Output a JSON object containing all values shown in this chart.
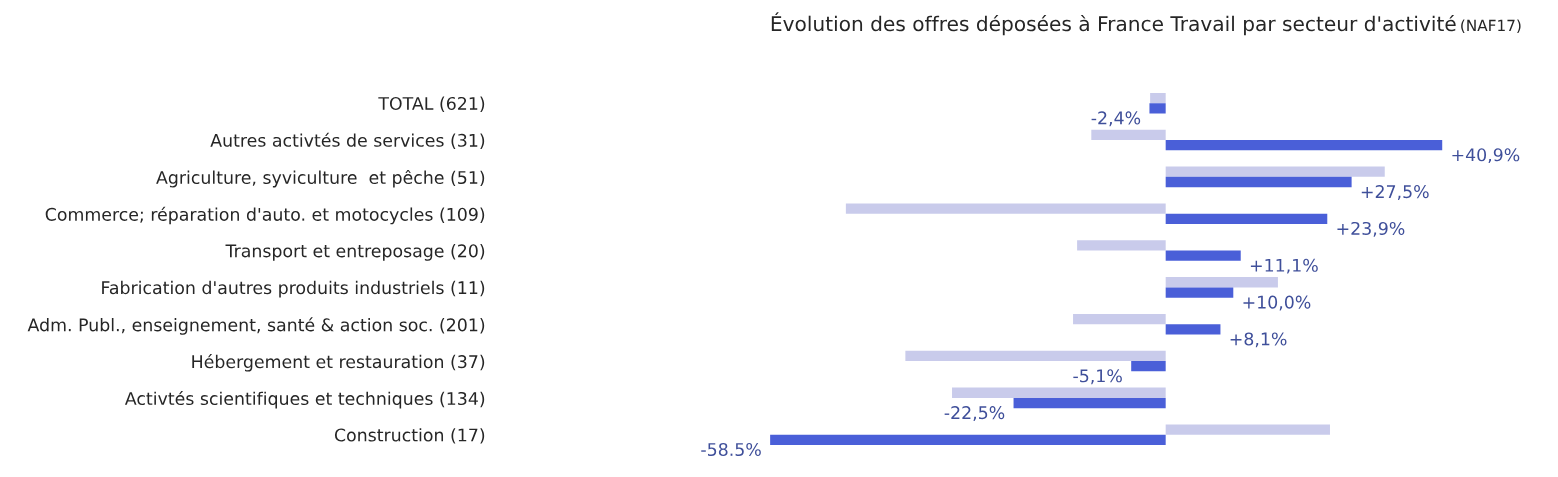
{
  "chart_data": {
    "type": "bar",
    "orientation": "horizontal",
    "title": "Évolution des offres déposées à France Travail par secteur d'activité",
    "subtitle": "(NAF17)",
    "categories": [
      "TOTAL (621)",
      "Autres activtés de services (31)",
      "Agriculture, syviculture  et pêche (51)",
      "Commerce; réparation d'auto. et motocycles (109)",
      "Transport et entreposage (20)",
      "Fabrication d'autres produits industriels (11)",
      "Adm. Publ., enseignement, santé & action soc. (201)",
      "Hébergement et restauration (37)",
      "Activtés scientifiques et techniques (134)",
      "Construction (17)"
    ],
    "series": [
      {
        "color": "#c9cbeb",
        "values": [
          -2.3,
          -11.0,
          32.4,
          -47.3,
          -13.1,
          16.6,
          -13.7,
          -38.5,
          -31.6,
          24.3
        ]
      },
      {
        "color": "#4a5fd8",
        "values": [
          -2.4,
          40.9,
          27.5,
          23.9,
          11.1,
          10.0,
          8.1,
          -5.1,
          -22.5,
          -58.5
        ],
        "value_labels": [
          "-2,4%",
          "+40,9%",
          "+27,5%",
          "+23,9%",
          "+11,1%",
          "+10,0%",
          "+8,1%",
          "-5,1%",
          "-22,5%",
          "-58.5%"
        ]
      }
    ],
    "grid": false,
    "legend": false
  }
}
